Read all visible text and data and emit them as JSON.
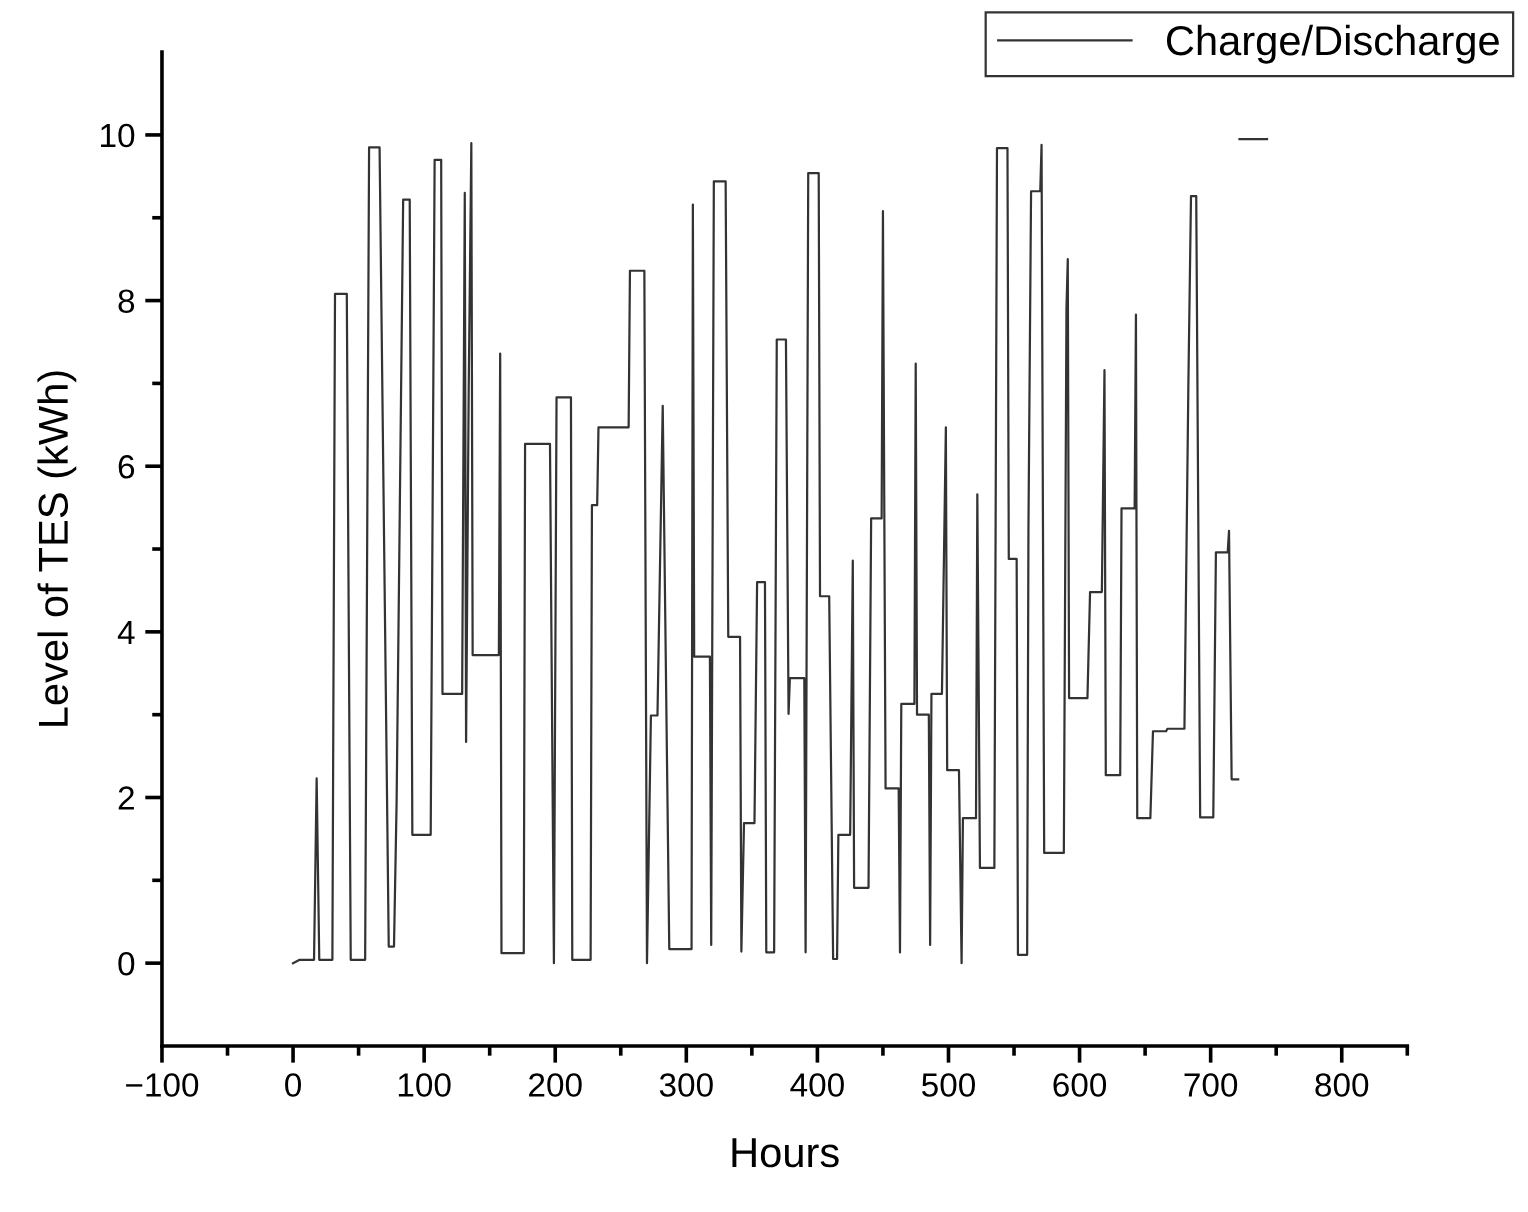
{
  "chart_data": {
    "type": "line",
    "xlabel": "Hours",
    "ylabel": "Level of TES (kWh)",
    "xlim": [
      -100,
      850
    ],
    "ylim": [
      -1,
      11
    ],
    "xticks": [
      -100,
      {
        "value": -50,
        "label": null
      },
      0,
      {
        "value": 50,
        "label": null
      },
      100,
      {
        "value": 150,
        "label": null
      },
      200,
      {
        "value": 250,
        "label": null
      },
      300,
      {
        "value": 350,
        "label": null
      },
      400,
      {
        "value": 450,
        "label": null
      },
      500,
      {
        "value": 550,
        "label": null
      },
      600,
      {
        "value": 650,
        "label": null
      },
      700,
      {
        "value": 750,
        "label": null
      },
      800,
      {
        "value": 850,
        "label": null
      }
    ],
    "yticks": [
      0,
      {
        "value": 1,
        "label": null
      },
      2,
      {
        "value": 3,
        "label": null
      },
      4,
      {
        "value": 5,
        "label": null
      },
      6,
      {
        "value": 7,
        "label": null
      },
      8,
      {
        "value": 9,
        "label": null
      },
      10
    ],
    "grid": false,
    "legend": "top right",
    "marker": "none",
    "line_style": "solid",
    "series": [
      {
        "name": "Charge/Discharge",
        "color": "#333333",
        "x": [
          0,
          5,
          16,
          18,
          20,
          30,
          32,
          41,
          44,
          55,
          58,
          66,
          73,
          77,
          79,
          84,
          89,
          91,
          105,
          108,
          113,
          114,
          129,
          131,
          132,
          134,
          136,
          137,
          157,
          158,
          159,
          176,
          177,
          196,
          199,
          201,
          212,
          213,
          227,
          228,
          232,
          233,
          256,
          257,
          268,
          270,
          273,
          278,
          282,
          287,
          304,
          305,
          306,
          318,
          319,
          321,
          330,
          332,
          341,
          342,
          344,
          352,
          354,
          360,
          361,
          367,
          369,
          376,
          378,
          379,
          390,
          391,
          393,
          401,
          402,
          409,
          412,
          415,
          416,
          425,
          427,
          428,
          439,
          441,
          449,
          450,
          452,
          462,
          463,
          464,
          474,
          475,
          476,
          485,
          486,
          487,
          495,
          498,
          499,
          508,
          510,
          511,
          521,
          522,
          524,
          535,
          537,
          545,
          546,
          552,
          553,
          560,
          561,
          563,
          570,
          571,
          573,
          588,
          590,
          591,
          592,
          606,
          608,
          617,
          619,
          620,
          631,
          632,
          642,
          643,
          644,
          654,
          656,
          666,
          667,
          680,
          683,
          685,
          689,
          692,
          702,
          704,
          713,
          714,
          716,
          721
        ],
        "values": [
          0.0,
          0.04,
          0.04,
          2.23,
          0.04,
          0.04,
          8.08,
          8.08,
          0.04,
          0.04,
          9.85,
          9.85,
          0.2,
          0.2,
          1.95,
          9.22,
          9.22,
          1.55,
          1.55,
          9.7,
          9.7,
          3.25,
          3.25,
          9.3,
          2.67,
          6.94,
          9.9,
          3.72,
          3.72,
          7.36,
          0.12,
          0.12,
          6.27,
          6.27,
          0.0,
          6.83,
          6.83,
          0.04,
          0.04,
          5.53,
          5.53,
          6.47,
          6.47,
          8.36,
          8.36,
          0.0,
          2.99,
          2.99,
          6.73,
          0.17,
          0.17,
          9.16,
          3.7,
          3.7,
          0.22,
          9.44,
          9.44,
          3.94,
          3.94,
          0.14,
          1.69,
          1.69,
          4.6,
          4.6,
          0.13,
          0.13,
          7.53,
          7.53,
          3.01,
          3.44,
          3.44,
          0.13,
          9.54,
          9.54,
          4.43,
          4.43,
          0.05,
          0.05,
          1.55,
          1.55,
          4.86,
          0.91,
          0.91,
          5.37,
          5.37,
          9.08,
          2.11,
          2.11,
          0.13,
          3.13,
          3.13,
          7.24,
          3.0,
          3.0,
          0.22,
          3.25,
          3.25,
          6.47,
          2.33,
          2.33,
          0.0,
          1.75,
          1.75,
          5.66,
          1.15,
          1.15,
          9.84,
          9.84,
          4.88,
          4.88,
          0.1,
          0.1,
          5.25,
          9.32,
          9.32,
          9.88,
          1.33,
          1.33,
          7.9,
          8.5,
          3.2,
          3.2,
          4.48,
          4.48,
          7.16,
          2.27,
          2.27,
          5.49,
          5.49,
          7.83,
          1.75,
          1.75,
          2.8,
          2.8,
          2.83,
          2.83,
          6.99,
          9.26,
          9.26,
          1.76,
          1.76,
          4.96,
          4.96,
          5.22,
          2.22,
          2.22
        ]
      },
      {
        "color": "#333333",
        "x": [
          722,
          743
        ],
        "values": [
          9.95,
          9.95
        ]
      }
    ]
  }
}
